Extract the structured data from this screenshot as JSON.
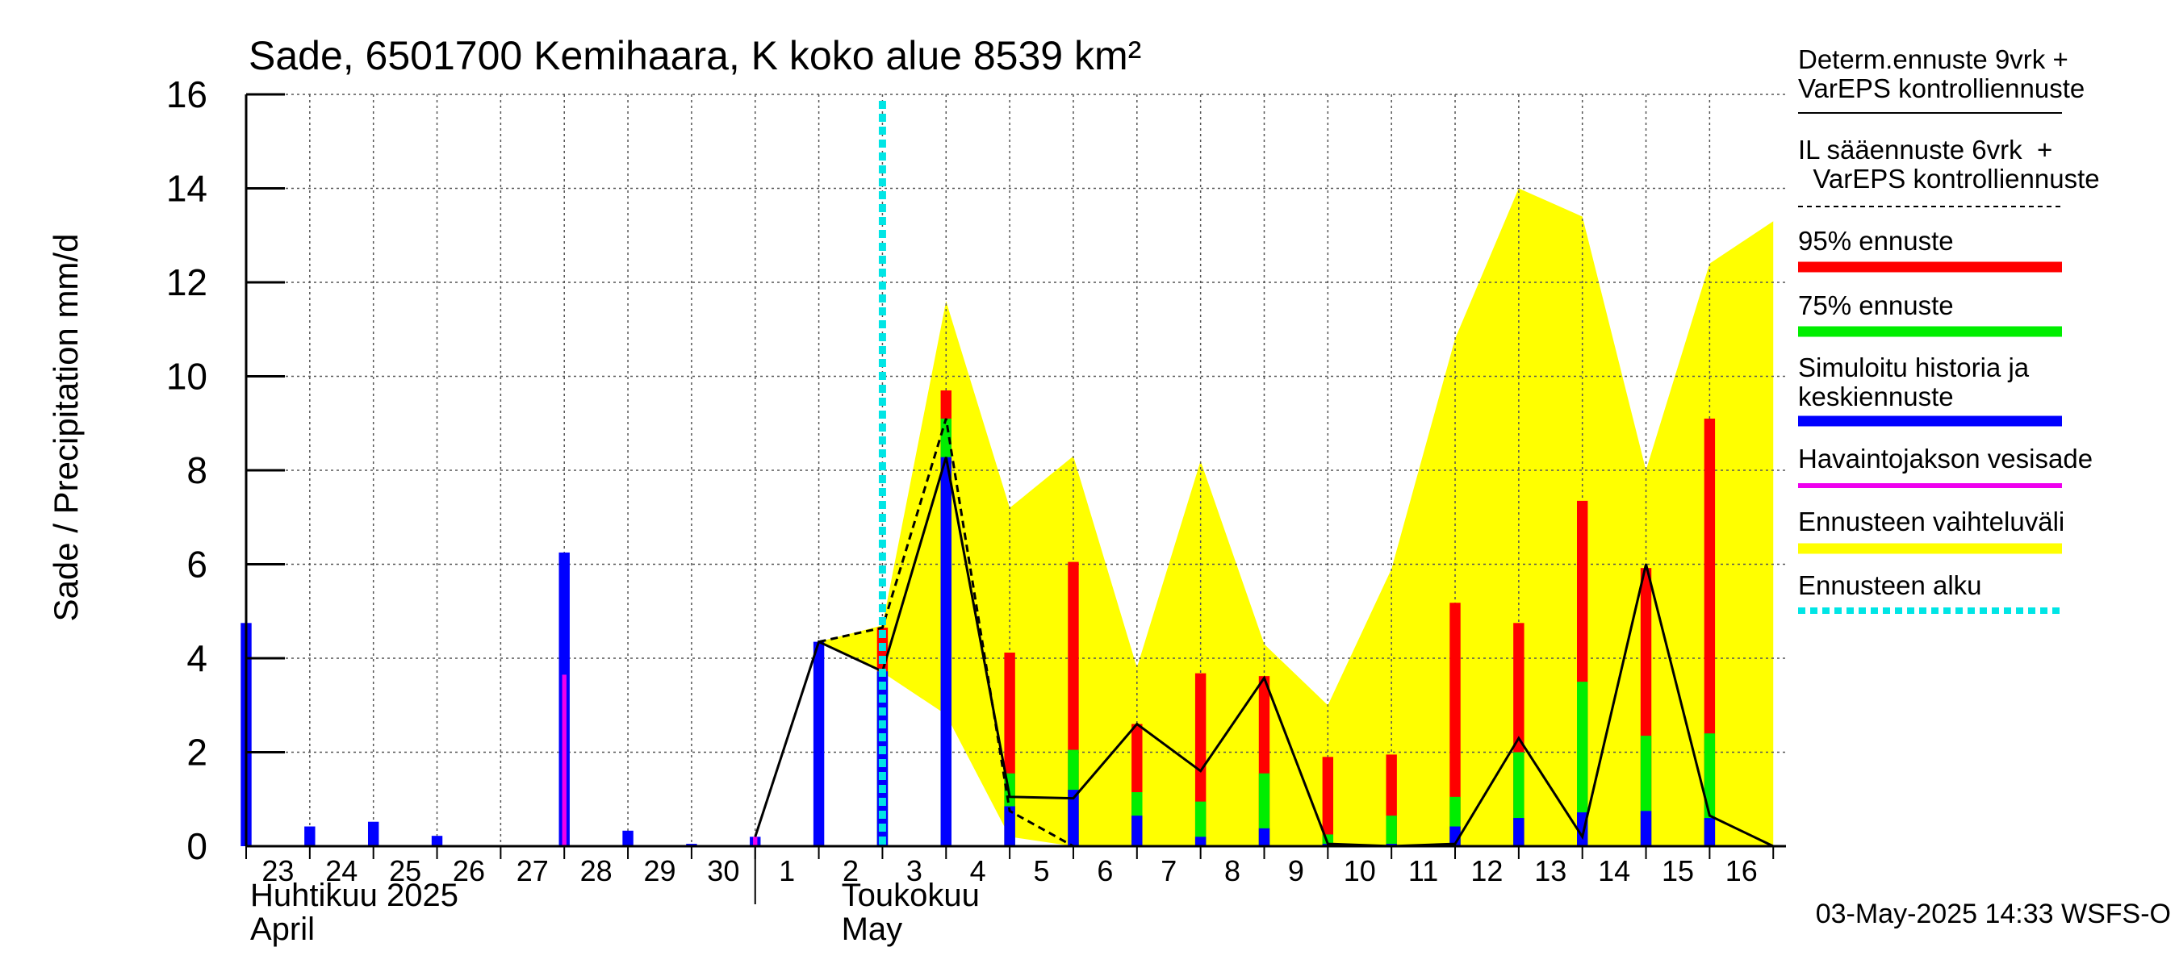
{
  "chart_data": {
    "type": "bar",
    "title": "Sade, 6501700 Kemihaara, K koko alue 8539 km²",
    "ylabel": "Sade / Precipitation   mm/d",
    "ylim": [
      0,
      16
    ],
    "yticks": [
      0,
      2,
      4,
      6,
      8,
      10,
      12,
      14,
      16
    ],
    "grid": true,
    "day_labels": [
      "23",
      "24",
      "25",
      "26",
      "27",
      "28",
      "29",
      "30",
      "1",
      "2",
      "3",
      "4",
      "5",
      "6",
      "7",
      "8",
      "9",
      "10",
      "11",
      "12",
      "13",
      "14",
      "15",
      "16"
    ],
    "month_labels": [
      {
        "line1": "Huhtikuu  2025",
        "line2": "April"
      },
      {
        "line1": "Toukokuu",
        "line2": "May"
      }
    ],
    "footer": "03-May-2025 14:33 WSFS-O",
    "forecast_start_day": 10,
    "history": {
      "simulated": [
        4.75,
        0.42,
        0.52,
        0.22,
        0,
        6.25,
        0.33,
        0.05,
        0.2,
        4.35
      ],
      "observed": [
        0,
        0,
        0,
        0,
        0,
        3.65,
        0,
        0,
        0.2,
        0
      ]
    },
    "forecast": {
      "days": [
        10,
        11,
        12,
        13,
        14,
        15,
        16,
        17,
        18,
        19,
        20,
        21,
        22,
        23
      ],
      "mean": [
        3.72,
        8.28,
        0.85,
        1.2,
        0.65,
        0.2,
        0.38,
        0.05,
        0.05,
        0.42,
        0.6,
        0.72,
        0.75,
        0.6
      ],
      "p75": [
        3.72,
        9.1,
        1.55,
        2.05,
        1.15,
        0.95,
        1.55,
        0.25,
        0.65,
        1.05,
        2.0,
        3.5,
        2.35,
        2.4
      ],
      "p95": [
        4.65,
        9.7,
        4.12,
        6.05,
        2.6,
        3.68,
        3.62,
        1.9,
        1.95,
        5.18,
        4.75,
        7.35,
        5.92,
        9.1
      ],
      "band_x": [
        9,
        10,
        11,
        12,
        13,
        14,
        15,
        16,
        17,
        18,
        19,
        20,
        21,
        22,
        23
      ],
      "band_low": [
        4.35,
        3.7,
        2.8,
        0.2,
        0.0,
        0.0,
        0.0,
        0.0,
        0.0,
        0.0,
        0.0,
        0.0,
        0.0,
        0.0,
        0.0
      ],
      "band_high": [
        4.35,
        4.7,
        11.6,
        7.2,
        8.3,
        3.8,
        8.2,
        4.3,
        3.0,
        5.9,
        10.8,
        14.0,
        13.4,
        8.0,
        12.4
      ],
      "band_end": {
        "x": 24,
        "low": 0.0,
        "high": 13.3
      },
      "determ_x": [
        8,
        9,
        10,
        11,
        12,
        13,
        14,
        15,
        16,
        17,
        18,
        19,
        20,
        21,
        22,
        23,
        24
      ],
      "determ": [
        0.2,
        4.35,
        3.72,
        8.28,
        1.05,
        1.02,
        2.6,
        1.6,
        3.58,
        0.05,
        0.0,
        0.05,
        2.3,
        0.2,
        6.0,
        0.65,
        0.0
      ],
      "il_x": [
        9,
        10,
        11,
        12,
        13,
        14,
        15
      ],
      "il": [
        4.35,
        4.65,
        9.1,
        0.75,
        0.0,
        0.0,
        0.0
      ]
    },
    "legend": [
      {
        "label": "Determ.ennuste 9vrk +\nVarEPS kontrolliennuste",
        "style": "line",
        "color": "#000000"
      },
      {
        "label": "IL sääennuste 6vrk  +\n  VarEPS kontrolliennuste",
        "style": "dashed",
        "color": "#000000"
      },
      {
        "label": "95% ennuste",
        "style": "bar",
        "color": "#ff0000"
      },
      {
        "label": "75% ennuste",
        "style": "bar",
        "color": "#00ee00"
      },
      {
        "label": "Simuloitu historia ja\nkeskiennuste",
        "style": "bar",
        "color": "#0000ff"
      },
      {
        "label": "Havaintojakson vesisade",
        "style": "thin",
        "color": "#ee00ee"
      },
      {
        "label": "Ennusteen vaihteluväli",
        "style": "bar",
        "color": "#ffff00"
      },
      {
        "label": "Ennusteen alku",
        "style": "dotted",
        "color": "#00e5e5"
      }
    ]
  }
}
